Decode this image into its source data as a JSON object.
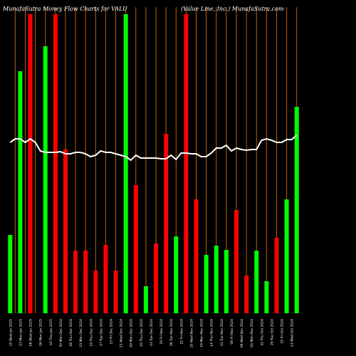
{
  "header": {
    "left": "MunafaSutra  Money Flow  Charts for VALU",
    "right": "(Value   Line,  Inc.) MunafaSutra.com"
  },
  "chart_data": {
    "type": "bar",
    "title": "Money Flow Charts for VALU",
    "y_direction": "bars grow up from the baseline",
    "bar_colors": {
      "up": "#00ff00",
      "down": "#ff0000"
    },
    "grid_color": "#b8620a",
    "line_color": "#ffffff",
    "volume_scale": [
      0,
      420
    ],
    "price_scale": [
      0,
      440
    ],
    "categories": [
      "Wed 15 Jan 2025",
      "Tue 14 Jan 2025",
      "Mon 13 Jan 2025",
      "Fri 10 Jan 2025",
      "Wed 08 Jan 2025",
      "Tue 07 Jan 2025",
      "Mon 06 Jan 2025",
      "Fri 03 Jan 2025",
      "Thu 02 Jan 2025",
      "Tue 31 Dec 2024",
      "Mon 30 Dec 2024",
      "Fri 27 Dec 2024",
      "Thu 26 Dec 2024",
      "Tue 24 Dec 2024",
      "Mon 23 Dec 2024",
      "Fri 20 Dec 2024",
      "Thu 19 Dec 2024",
      "Wed 18 Dec 2024",
      "Tue 17 Dec 2024",
      "Mon 16 Dec 2024",
      "Fri 13 Dec 2024",
      "Thu 12 Dec 2024",
      "Wed 11 Dec 2024",
      "Tue 10 Dec 2024",
      "Mon 09 Dec 2024",
      "Fri 06 Dec 2024",
      "Thu 05 Dec 2024",
      "Wed 04 Dec 2024",
      "Tue 03 Dec 2024",
      "Mon 02 Dec 2024",
      "Fri 29 Nov 2024",
      "Wed 27 Nov 2024",
      "Tue 26 Nov 2024",
      "Mon 25 Nov 2024",
      "Fri 22 Nov 2024",
      "Thu 21 Nov 2024",
      "Wed 20 Nov 2024",
      "Tue 19 Nov 2024",
      "Mon 18 Nov 2024",
      "Fri 15 Nov 2024",
      "Thu 14 Nov 2024",
      "Wed 13 Nov 2024",
      "Tue 12 Nov 2024",
      "Mon 11 Nov 2024",
      "Fri 08 Nov 2024",
      "Thu 07 Nov 2024",
      "Wed 06 Nov 2024",
      "Tue 05 Nov 2024",
      "Mon 04 Nov 2024",
      "Fri 01 Nov 2024",
      "Thu 31 Oct 2024",
      "Wed 30 Oct 2024",
      "Tue 29 Oct 2024",
      "Mon 28 Oct 2024",
      "Fri 25 Oct 2024",
      "Thu 24 Oct 2024",
      "Wed 23 Oct 2024",
      "Tue 22 Oct 2024"
    ],
    "tick_labels": [
      "15 Wed Jan 2025",
      "14 Tue Jan 2025",
      "13 Mon Jan 2025",
      "10 Fri Jan 2025",
      "08 Wed Jan 2025",
      "07 Tue Jan 2025",
      "06 Mon Jan 2025",
      "03 Fri Jan 2025",
      "02 Thu Jan 2025",
      "31 Tue Dec 2024",
      "30 Mon Dec 2024",
      "27 Fri Dec 2024",
      "26 Thu Dec 2024",
      "24 Tue Dec 2024",
      "23 Mon Dec 2024",
      "20 Fri Dec 2024",
      "19 Thu Dec 2024",
      "18 Wed Dec 2024",
      "17 Tue Dec 2024",
      "16 Mon Dec 2024",
      "13 Fri Dec 2024",
      "12 Thu Dec 2024",
      "11 Wed Dec 2024",
      "10 Tue Dec 2024",
      "09 Mon Dec 2024",
      "06 Fri Dec 2024",
      "05 Thu Dec 2024",
      "04 Wed Dec 2024",
      "03 Tue Dec 2024",
      "02 Mon Dec 2024",
      "29 Fri Nov 2024",
      "27 Wed Nov 2024",
      "26 Tue Nov 2024",
      "25 Mon Nov 2024",
      "22 Fri Nov 2024",
      "21 Thu Nov 2024",
      "20 Wed Nov 2024",
      "19 Tue Nov 2024",
      "18 Mon Nov 2024",
      "15 Fri Nov 2024",
      "14 Thu Nov 2024",
      "13 Wed Nov 2024",
      "12 Tue Nov 2024",
      "11 Mon Nov 2024",
      "08 Fri Nov 2024",
      "07 Thu Nov 2024",
      "06 Wed Nov 2024",
      "05 Tue Nov 2024",
      "04 Mon Nov 2024",
      "01 Fri Nov 2024",
      "31 Thu Oct 2024",
      "30 Wed Oct 2024",
      "29 Tue Oct 2024",
      "28 Mon Oct 2024",
      "25 Fri Oct 2024",
      "24 Thu Oct 2024",
      "23 Wed Oct 2024",
      "22 Tue Oct 2024"
    ],
    "series": [
      {
        "kind": "bars",
        "items": [
          {
            "v": 110,
            "c": "up"
          },
          {
            "v": 0,
            "c": "up"
          },
          {
            "v": 340,
            "c": "up"
          },
          {
            "v": 0,
            "c": "up"
          },
          {
            "v": 420,
            "c": "down"
          },
          {
            "v": 0,
            "c": "up"
          },
          {
            "v": 0,
            "c": "up"
          },
          {
            "v": 375,
            "c": "up"
          },
          {
            "v": 0,
            "c": "up"
          },
          {
            "v": 420,
            "c": "down"
          },
          {
            "v": 0,
            "c": "up"
          },
          {
            "v": 230,
            "c": "down"
          },
          {
            "v": 0,
            "c": "up"
          },
          {
            "v": 88,
            "c": "down"
          },
          {
            "v": 0,
            "c": "up"
          },
          {
            "v": 88,
            "c": "down"
          },
          {
            "v": 0,
            "c": "up"
          },
          {
            "v": 60,
            "c": "down"
          },
          {
            "v": 0,
            "c": "up"
          },
          {
            "v": 96,
            "c": "down"
          },
          {
            "v": 0,
            "c": "up"
          },
          {
            "v": 60,
            "c": "down"
          },
          {
            "v": 0,
            "c": "up"
          },
          {
            "v": 420,
            "c": "up"
          },
          {
            "v": 0,
            "c": "up"
          },
          {
            "v": 180,
            "c": "down"
          },
          {
            "v": 0,
            "c": "up"
          },
          {
            "v": 38,
            "c": "up"
          },
          {
            "v": 0,
            "c": "up"
          },
          {
            "v": 98,
            "c": "down"
          },
          {
            "v": 0,
            "c": "up"
          },
          {
            "v": 252,
            "c": "down"
          },
          {
            "v": 0,
            "c": "up"
          },
          {
            "v": 108,
            "c": "up"
          },
          {
            "v": 0,
            "c": "up"
          },
          {
            "v": 420,
            "c": "down"
          },
          {
            "v": 0,
            "c": "up"
          },
          {
            "v": 160,
            "c": "down"
          },
          {
            "v": 0,
            "c": "up"
          },
          {
            "v": 82,
            "c": "up"
          },
          {
            "v": 0,
            "c": "up"
          },
          {
            "v": 95,
            "c": "up"
          },
          {
            "v": 0,
            "c": "up"
          },
          {
            "v": 89,
            "c": "up"
          },
          {
            "v": 0,
            "c": "up"
          },
          {
            "v": 145,
            "c": "down"
          },
          {
            "v": 0,
            "c": "up"
          },
          {
            "v": 53,
            "c": "down"
          },
          {
            "v": 0,
            "c": "up"
          },
          {
            "v": 88,
            "c": "up"
          },
          {
            "v": 0,
            "c": "up"
          },
          {
            "v": 45,
            "c": "up"
          },
          {
            "v": 0,
            "c": "up"
          },
          {
            "v": 106,
            "c": "down"
          },
          {
            "v": 0,
            "c": "up"
          },
          {
            "v": 160,
            "c": "up"
          },
          {
            "v": 0,
            "c": "up"
          },
          {
            "v": 290,
            "c": "up"
          }
        ]
      },
      {
        "kind": "line",
        "values": [
          240,
          245,
          245,
          240,
          245,
          240,
          228,
          226,
          226,
          226,
          227,
          224,
          224,
          226,
          226,
          224,
          220,
          222,
          228,
          226,
          226,
          224,
          222,
          220,
          215,
          222,
          218,
          218,
          218,
          218,
          217,
          217,
          222,
          216,
          225,
          225,
          224,
          224,
          220,
          220,
          225,
          232,
          232,
          236,
          228,
          232,
          230,
          229,
          230,
          230,
          243,
          245,
          243,
          240,
          240,
          244,
          244,
          250
        ]
      }
    ]
  }
}
